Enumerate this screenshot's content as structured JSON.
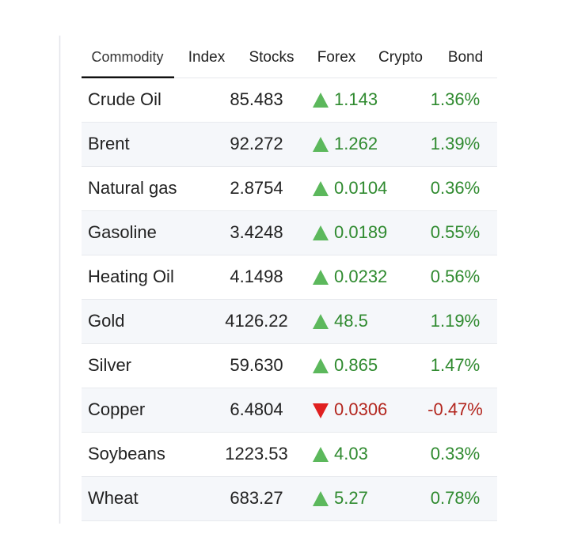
{
  "tabs": {
    "items": [
      "Commodity",
      "Index",
      "Stocks",
      "Forex",
      "Crypto",
      "Bond"
    ],
    "active": 0
  },
  "table": {
    "rows": [
      {
        "name": "Crude Oil",
        "price": "85.483",
        "direction": "up",
        "change": "1.143",
        "percent": "1.36%"
      },
      {
        "name": "Brent",
        "price": "92.272",
        "direction": "up",
        "change": "1.262",
        "percent": "1.39%"
      },
      {
        "name": "Natural gas",
        "price": "2.8754",
        "direction": "up",
        "change": "0.0104",
        "percent": "0.36%"
      },
      {
        "name": "Gasoline",
        "price": "3.4248",
        "direction": "up",
        "change": "0.0189",
        "percent": "0.55%"
      },
      {
        "name": "Heating Oil",
        "price": "4.1498",
        "direction": "up",
        "change": "0.0232",
        "percent": "0.56%"
      },
      {
        "name": "Gold",
        "price": "4126.22",
        "direction": "up",
        "change": "48.5",
        "percent": "1.19%"
      },
      {
        "name": "Silver",
        "price": "59.630",
        "direction": "up",
        "change": "0.865",
        "percent": "1.47%"
      },
      {
        "name": "Copper",
        "price": "6.4804",
        "direction": "down",
        "change": "0.0306",
        "percent": "-0.47%"
      },
      {
        "name": "Soybeans",
        "price": "1223.53",
        "direction": "up",
        "change": "4.03",
        "percent": "0.33%"
      },
      {
        "name": "Wheat",
        "price": "683.27",
        "direction": "up",
        "change": "5.27",
        "percent": "0.78%"
      }
    ]
  }
}
